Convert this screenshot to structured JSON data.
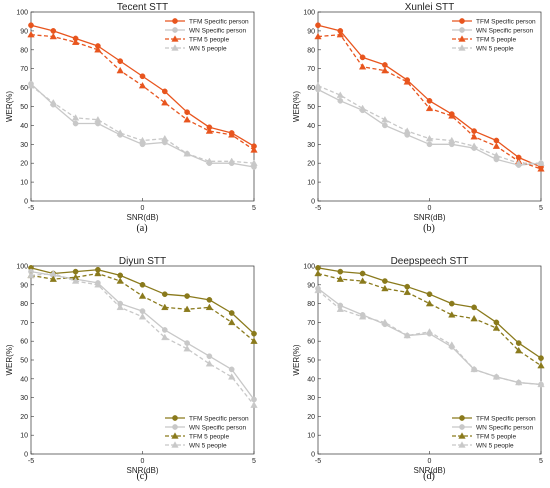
{
  "chart_data": [
    {
      "type": "line",
      "title": "Tecent STT",
      "caption": "(a)",
      "xlabel": "SNR(dB)",
      "ylabel": "WER(%)",
      "xlim": [
        -5,
        5
      ],
      "ylim": [
        0,
        100
      ],
      "xticks": [
        -5,
        0,
        5
      ],
      "yticks": [
        0,
        10,
        20,
        30,
        40,
        50,
        60,
        70,
        80,
        90,
        100
      ],
      "grid": false,
      "legend_position": "top-right",
      "colors": {
        "tfm": "#e8551e",
        "wn": "#c8c8c8"
      },
      "x": [
        -5,
        -4,
        -3,
        -2,
        -1,
        0,
        1,
        2,
        3,
        4,
        5
      ],
      "series": [
        {
          "name": "TFM Specific person",
          "style": "solid-circle",
          "values": [
            93,
            90,
            86,
            82,
            74,
            66,
            58,
            47,
            39,
            36,
            29
          ]
        },
        {
          "name": "WN Specific person",
          "style": "solid-circle",
          "values": [
            62,
            51,
            41,
            41,
            35,
            30,
            31,
            25,
            20,
            20,
            18
          ]
        },
        {
          "name": "TFM 5 people",
          "style": "dashed-triangle",
          "values": [
            88,
            87,
            84,
            80,
            69,
            61,
            52,
            43,
            37,
            35,
            27
          ]
        },
        {
          "name": "WN 5 people",
          "style": "dashed-triangle",
          "values": [
            61,
            52,
            44,
            43,
            36,
            32,
            33,
            25,
            21,
            21,
            20
          ]
        }
      ]
    },
    {
      "type": "line",
      "title": "Xunlei STT",
      "caption": "(b)",
      "xlabel": "SNR(dB)",
      "ylabel": "WER(%)",
      "xlim": [
        -5,
        5
      ],
      "ylim": [
        0,
        100
      ],
      "xticks": [
        -5,
        0,
        5
      ],
      "yticks": [
        0,
        10,
        20,
        30,
        40,
        50,
        60,
        70,
        80,
        90,
        100
      ],
      "grid": false,
      "legend_position": "top-right",
      "colors": {
        "tfm": "#e8551e",
        "wn": "#c8c8c8"
      },
      "x": [
        -5,
        -4,
        -3,
        -2,
        -1,
        0,
        1,
        2,
        3,
        4,
        5
      ],
      "series": [
        {
          "name": "TFM Specific person",
          "style": "solid-circle",
          "values": [
            93,
            90,
            76,
            72,
            64,
            53,
            46,
            37,
            32,
            23,
            18
          ]
        },
        {
          "name": "WN Specific person",
          "style": "solid-circle",
          "values": [
            59,
            53,
            48,
            40,
            35,
            30,
            30,
            28,
            22,
            19,
            20
          ]
        },
        {
          "name": "TFM 5 people",
          "style": "dashed-triangle",
          "values": [
            87,
            88,
            71,
            69,
            63,
            49,
            45,
            34,
            29,
            21,
            17
          ]
        },
        {
          "name": "WN 5 people",
          "style": "dashed-triangle",
          "values": [
            61,
            56,
            49,
            43,
            37,
            33,
            32,
            29,
            24,
            20,
            20
          ]
        }
      ]
    },
    {
      "type": "line",
      "title": "Diyun STT",
      "caption": "(c)",
      "xlabel": "SNR(dB)",
      "ylabel": "WER(%)",
      "xlim": [
        -5,
        5
      ],
      "ylim": [
        0,
        100
      ],
      "xticks": [
        -5,
        0,
        5
      ],
      "yticks": [
        0,
        10,
        20,
        30,
        40,
        50,
        60,
        70,
        80,
        90,
        100
      ],
      "grid": false,
      "legend_position": "bottom-right",
      "colors": {
        "tfm": "#8a7a1c",
        "wn": "#c8c8c8"
      },
      "x": [
        -5,
        -4,
        -3,
        -2,
        -1,
        0,
        1,
        2,
        3,
        4,
        5
      ],
      "series": [
        {
          "name": "TFM Specific person",
          "style": "solid-circle",
          "values": [
            99,
            96,
            97,
            98,
            95,
            90,
            85,
            84,
            82,
            75,
            64
          ]
        },
        {
          "name": "WN Specific person",
          "style": "solid-circle",
          "values": [
            97,
            95,
            93,
            91,
            80,
            76,
            66,
            59,
            52,
            45,
            29
          ]
        },
        {
          "name": "TFM 5 people",
          "style": "dashed-triangle",
          "values": [
            95,
            93,
            94,
            96,
            92,
            84,
            78,
            77,
            78,
            70,
            60
          ]
        },
        {
          "name": "WN 5 people",
          "style": "dashed-triangle",
          "values": [
            95,
            96,
            92,
            90,
            78,
            73,
            62,
            56,
            48,
            41,
            26
          ]
        }
      ]
    },
    {
      "type": "line",
      "title": "Deepspeech STT",
      "caption": "(d)",
      "xlabel": "SNR(dB)",
      "ylabel": "WER(%)",
      "xlim": [
        -5,
        5
      ],
      "ylim": [
        0,
        100
      ],
      "xticks": [
        -5,
        0,
        5
      ],
      "yticks": [
        0,
        10,
        20,
        30,
        40,
        50,
        60,
        70,
        80,
        90,
        100
      ],
      "grid": false,
      "legend_position": "bottom-right",
      "colors": {
        "tfm": "#8a7a1c",
        "wn": "#c8c8c8"
      },
      "x": [
        -5,
        -4,
        -3,
        -2,
        -1,
        0,
        1,
        2,
        3,
        4,
        5
      ],
      "series": [
        {
          "name": "TFM Specific person",
          "style": "solid-circle",
          "values": [
            99,
            97,
            96,
            92,
            89,
            85,
            80,
            78,
            70,
            59,
            51
          ]
        },
        {
          "name": "WN Specific person",
          "style": "solid-circle",
          "values": [
            88,
            79,
            74,
            69,
            63,
            64,
            57,
            45,
            41,
            38,
            37
          ]
        },
        {
          "name": "TFM 5 people",
          "style": "dashed-triangle",
          "values": [
            96,
            93,
            92,
            88,
            86,
            80,
            74,
            72,
            67,
            55,
            47
          ]
        },
        {
          "name": "WN 5 people",
          "style": "dashed-triangle",
          "values": [
            87,
            77,
            73,
            70,
            63,
            65,
            58,
            45,
            41,
            38,
            37
          ]
        }
      ]
    }
  ]
}
